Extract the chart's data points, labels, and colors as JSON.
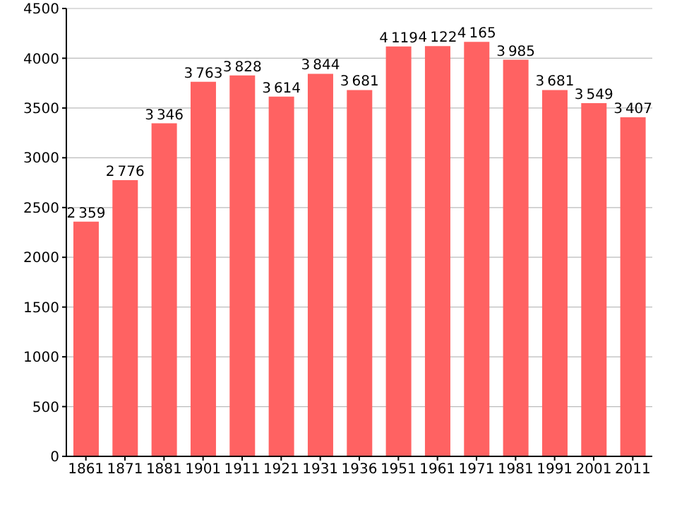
{
  "chart_data": {
    "type": "bar",
    "categories": [
      "1861",
      "1871",
      "1881",
      "1901",
      "1911",
      "1921",
      "1931",
      "1936",
      "1951",
      "1961",
      "1971",
      "1981",
      "1991",
      "2001",
      "2011"
    ],
    "values": [
      2359,
      2776,
      3346,
      3763,
      3828,
      3614,
      3844,
      3681,
      4119,
      4122,
      4165,
      3985,
      3681,
      3549,
      3407
    ],
    "color": "#ff6262",
    "ylim": [
      0,
      4500
    ],
    "yticks": [
      0,
      500,
      1000,
      1500,
      2000,
      2500,
      3000,
      3500,
      4000,
      4500
    ],
    "grid": "y",
    "data_labels": true
  }
}
